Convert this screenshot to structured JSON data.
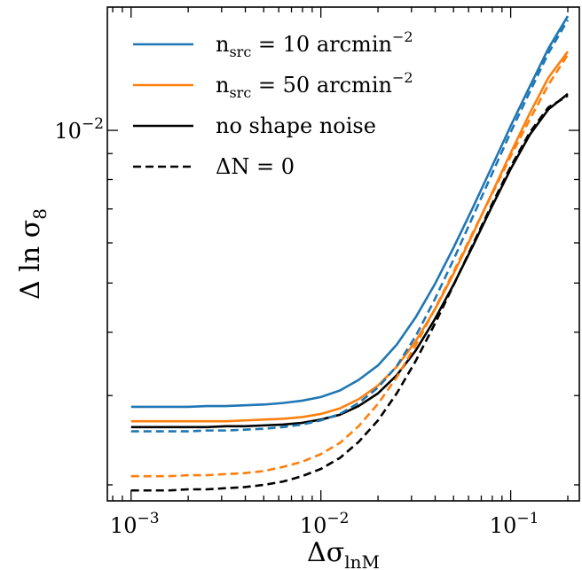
{
  "chart_data": {
    "type": "line",
    "title": "",
    "xlabel": "Δσ",
    "xlabel_sub": "lnM",
    "ylabel": "Δ ln σ",
    "ylabel_sub": "8",
    "xscale": "log",
    "yscale": "log",
    "xlim": [
      0.00075,
      0.23
    ],
    "ylim": [
      0.00186,
      0.0175
    ],
    "grid": false,
    "legend_position": "top-left",
    "x_ticks": [
      {
        "value": 0.001,
        "base": "10",
        "exp": "−3"
      },
      {
        "value": 0.01,
        "base": "10",
        "exp": "−2"
      },
      {
        "value": 0.1,
        "base": "10",
        "exp": "−1"
      }
    ],
    "y_ticks": [
      {
        "value": 0.01,
        "base": "10",
        "exp": "−2"
      }
    ],
    "x": [
      0.001,
      0.00126,
      0.00158,
      0.002,
      0.00251,
      0.00316,
      0.00398,
      0.00501,
      0.00631,
      0.00794,
      0.01,
      0.0126,
      0.0158,
      0.02,
      0.0251,
      0.0316,
      0.0398,
      0.0501,
      0.0631,
      0.0794,
      0.1,
      0.126,
      0.158,
      0.2
    ],
    "series": [
      {
        "name": "n",
        "legend_sub": "src",
        "legend_rest": " = 10 arcmin",
        "legend_sup": "−2",
        "color": "#1f77b4",
        "dash": "solid",
        "values": [
          0.00285,
          0.00285,
          0.00285,
          0.00285,
          0.00286,
          0.00286,
          0.00287,
          0.00288,
          0.0029,
          0.00293,
          0.00298,
          0.00307,
          0.00322,
          0.00344,
          0.00378,
          0.00428,
          0.00497,
          0.00588,
          0.00703,
          0.00846,
          0.0102,
          0.0122,
          0.0145,
          0.0168
        ]
      },
      {
        "name": "n",
        "legend_sub": "src",
        "legend_rest": " = 50 arcmin",
        "legend_sup": "−2",
        "color": "#ff7f0e",
        "dash": "solid",
        "values": [
          0.00267,
          0.00267,
          0.00267,
          0.00267,
          0.00267,
          0.00267,
          0.00268,
          0.00269,
          0.0027,
          0.00272,
          0.00276,
          0.00283,
          0.00295,
          0.00314,
          0.00342,
          0.00384,
          0.00443,
          0.00522,
          0.00624,
          0.0075,
          0.00902,
          0.0108,
          0.0127,
          0.0143
        ]
      },
      {
        "name": "no shape noise",
        "color": "#000000",
        "dash": "solid",
        "values": [
          0.0026,
          0.0026,
          0.0026,
          0.0026,
          0.0026,
          0.00261,
          0.00261,
          0.00262,
          0.00263,
          0.00265,
          0.00269,
          0.00275,
          0.00286,
          0.00303,
          0.00329,
          0.00368,
          0.00424,
          0.00497,
          0.00591,
          0.00706,
          0.00839,
          0.0098,
          0.011,
          0.0118
        ]
      },
      {
        "name": "ΔN = 0",
        "color": "#000000",
        "dash": "dashed",
        "values": [
          0.00195,
          0.00195,
          0.00195,
          0.00196,
          0.00196,
          0.00197,
          0.00198,
          0.002,
          0.00203,
          0.00208,
          0.00215,
          0.00226,
          0.00243,
          0.00268,
          0.00303,
          0.00351,
          0.00415,
          0.00496,
          0.00595,
          0.00713,
          0.00848,
          0.0099,
          0.0111,
          0.0117
        ]
      },
      {
        "name": "",
        "color": "#ff7f0e",
        "dash": "dashed",
        "values": [
          0.00208,
          0.00208,
          0.00208,
          0.00209,
          0.00209,
          0.0021,
          0.00211,
          0.00213,
          0.00217,
          0.00222,
          0.0023,
          0.00242,
          0.00261,
          0.00289,
          0.00326,
          0.00377,
          0.00444,
          0.00527,
          0.00628,
          0.00746,
          0.00889,
          0.0105,
          0.0123,
          0.0141
        ]
      },
      {
        "name": "",
        "color": "#1f77b4",
        "dash": "dashed",
        "values": [
          0.00255,
          0.00255,
          0.00255,
          0.00255,
          0.00256,
          0.00256,
          0.00257,
          0.00258,
          0.0026,
          0.00263,
          0.00268,
          0.00276,
          0.0029,
          0.00311,
          0.00343,
          0.00393,
          0.00464,
          0.00557,
          0.00675,
          0.00818,
          0.00992,
          0.0119,
          0.0142,
          0.0165
        ]
      }
    ]
  }
}
